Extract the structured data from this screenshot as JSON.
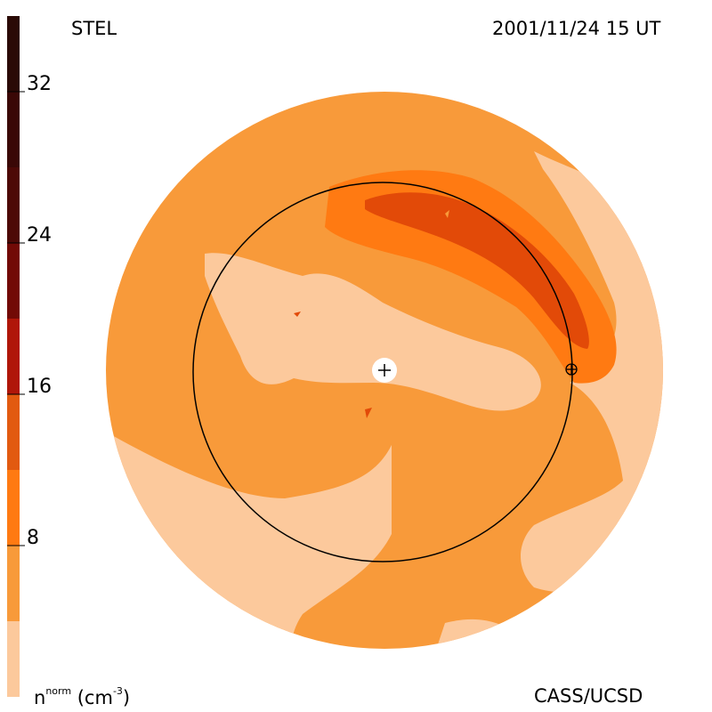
{
  "header": {
    "left_title": "STEL",
    "right_title": "2001/11/24 15 UT"
  },
  "footer": {
    "unit_label": {
      "base": "n",
      "superscript": "norm",
      "unit": " (cm",
      "unit_exp": "-3",
      "unit_close": ")"
    },
    "credit": "CASS/UCSD"
  },
  "colorbar": {
    "ticks": [
      "32",
      "24",
      "16",
      "8"
    ],
    "colors": [
      "#2a0a06",
      "#4d0906",
      "#720a06",
      "#b01609",
      "#e25a10",
      "#ff7a12",
      "#f89a3a",
      "#fcc99c"
    ]
  },
  "chart_data": {
    "type": "heatmap",
    "title": "",
    "variable": "normalized density",
    "unit": "cm^-3",
    "color_scale_range": [
      0,
      36
    ],
    "color_levels": [
      0,
      4.5,
      9,
      13.5,
      18,
      22.5,
      27,
      31.5,
      36
    ],
    "markers": [
      "Sun (plus symbol at center)",
      "Earth (circled plus on 1 AU ring)"
    ]
  }
}
